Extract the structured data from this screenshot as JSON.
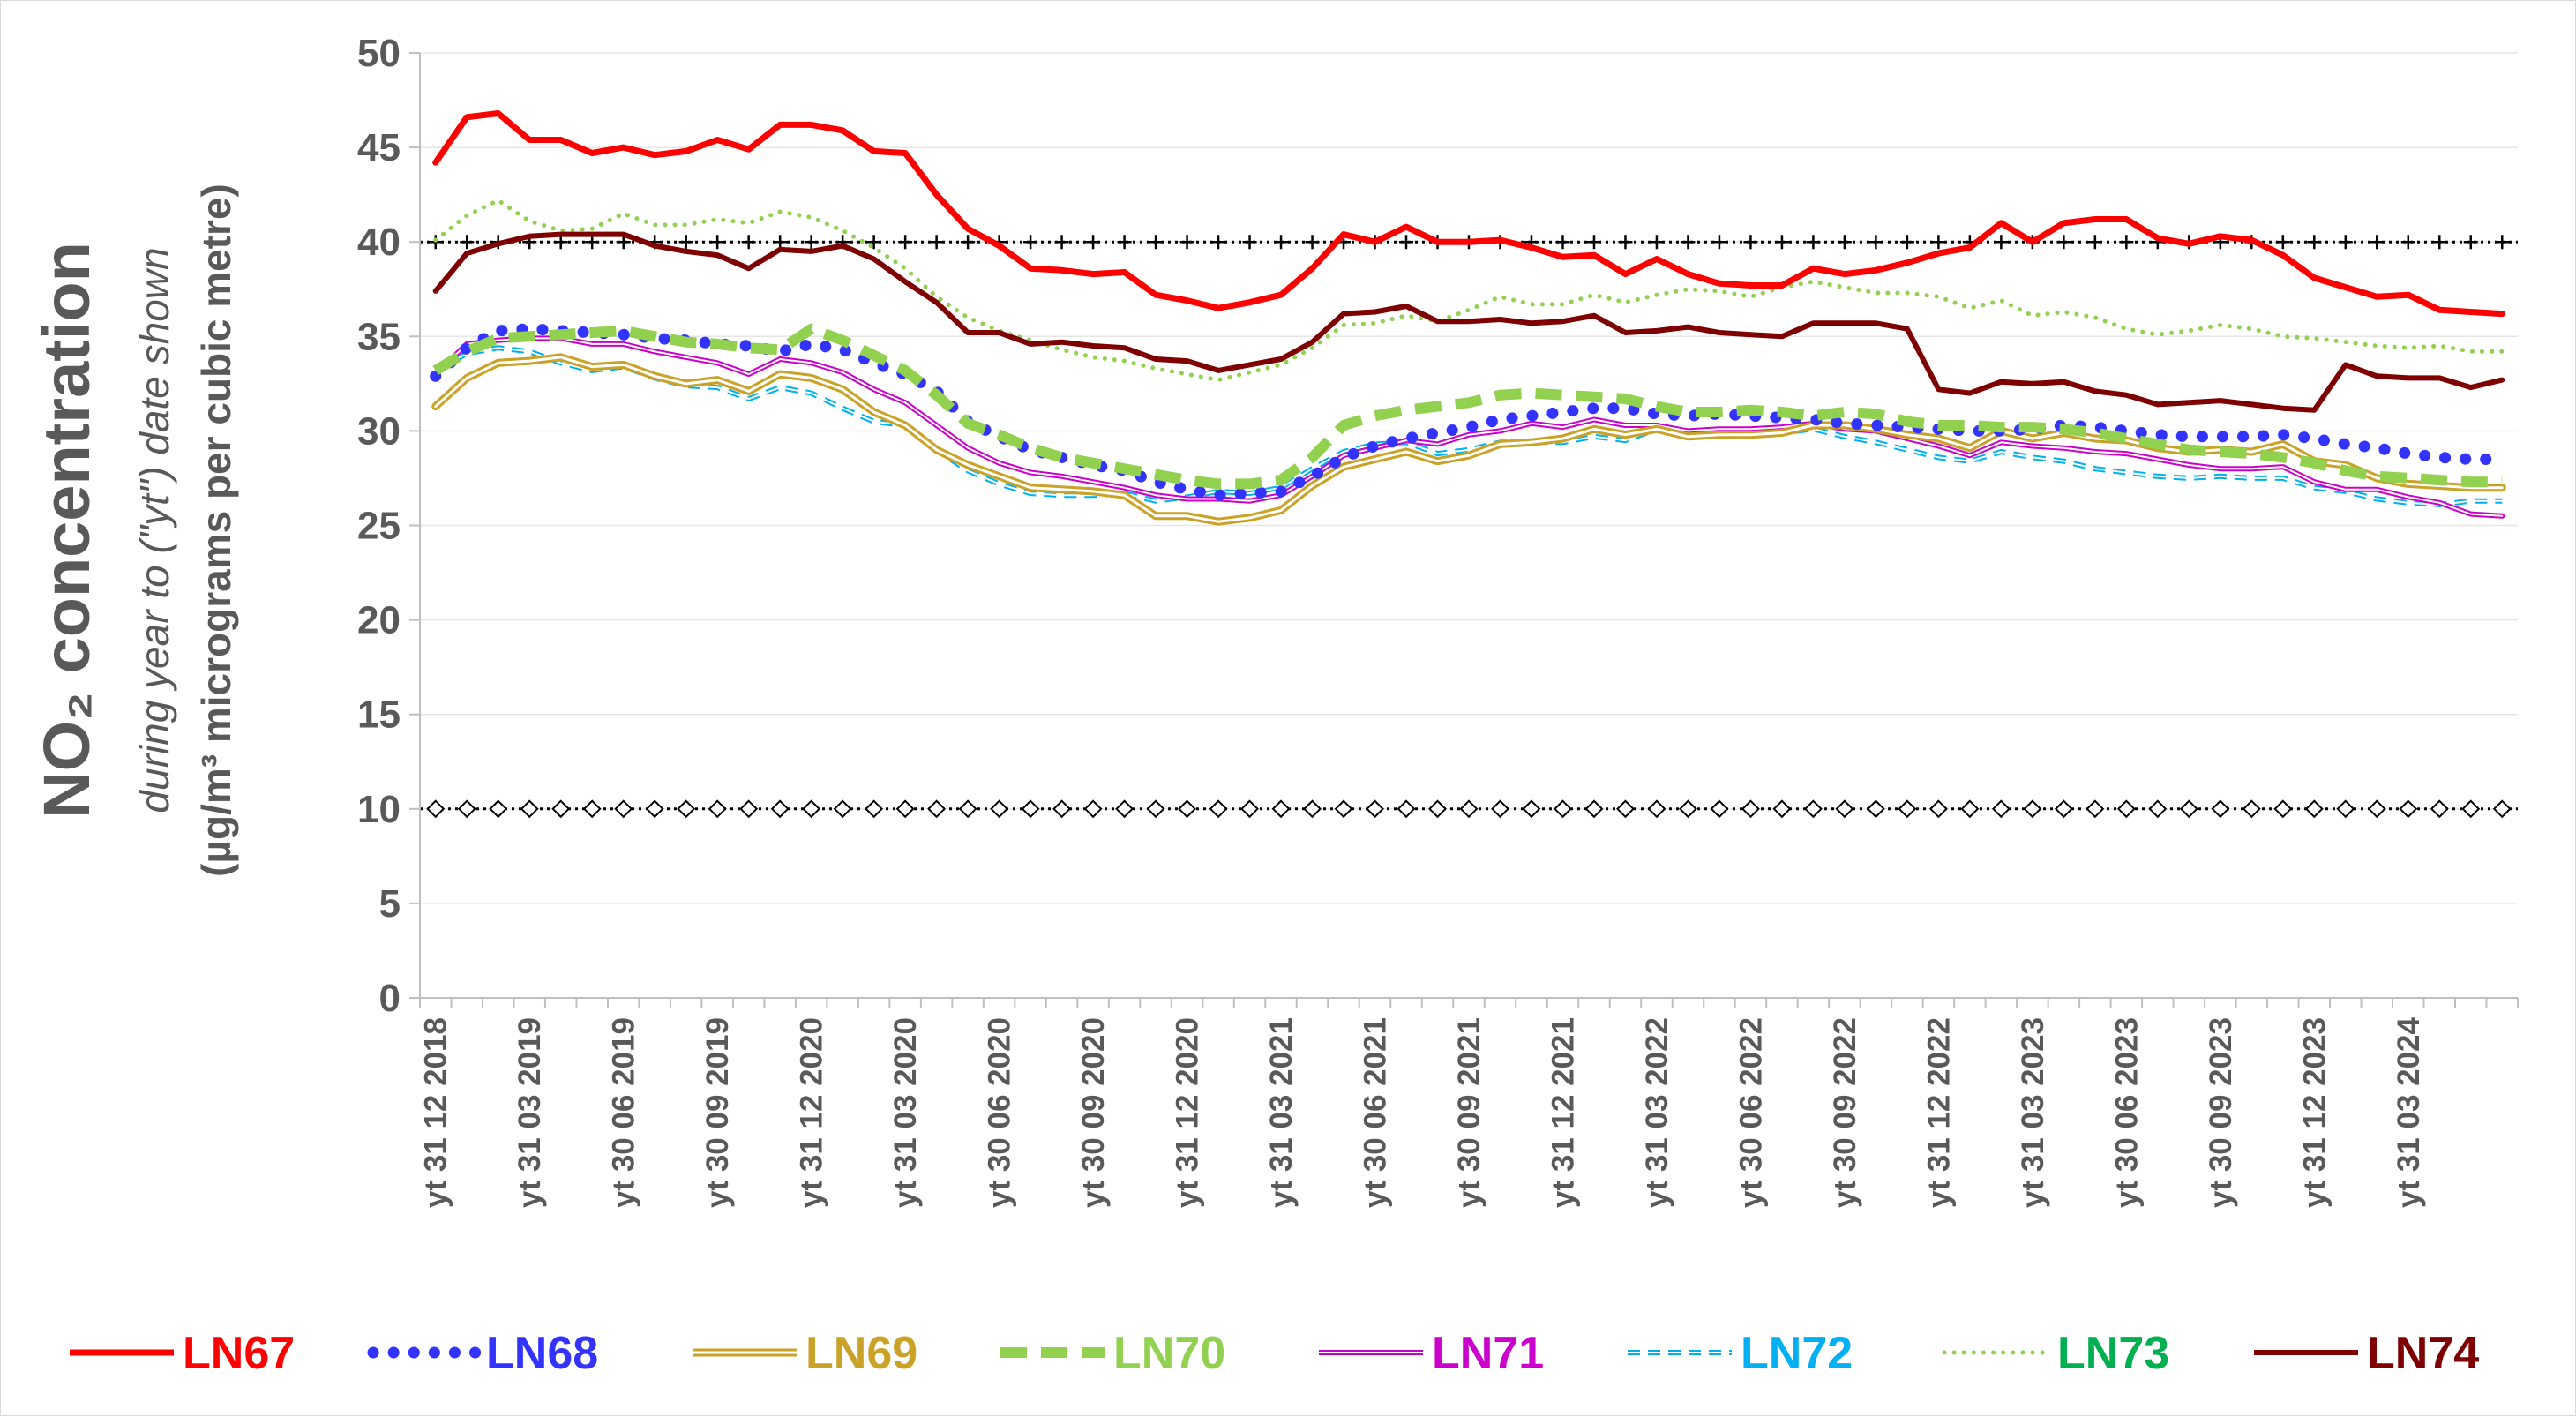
{
  "chart_data": {
    "type": "line",
    "ylabel_main": "NO₂ concentration",
    "ylabel_sub": "during year to (\"yt\") date shown",
    "ylabel_unit": "(µg/m³ micrograms per cubic metre)",
    "ylim": [
      0,
      50
    ],
    "yticks": [
      "0",
      "5",
      "10",
      "15",
      "20",
      "25",
      "30",
      "35",
      "40",
      "45",
      "50"
    ],
    "x_count": 67,
    "xtick_labels": [
      "yt 31 12 2018",
      "yt 31 03 2019",
      "yt 30 06 2019",
      "yt 30 09 2019",
      "yt 31 12 2020",
      "yt 31 03 2020",
      "yt 30 06 2020",
      "yt 30 09 2020",
      "yt 31 12 2020",
      "yt 31 03 2021",
      "yt 30 06 2021",
      "yt 30 09 2021",
      "yt 31 12 2021",
      "yt 31 03 2022",
      "yt 30 06 2022",
      "yt 30 09 2022",
      "yt 31 12 2022",
      "yt 31 03 2023",
      "yt 30 06 2023",
      "yt 30 09 2023",
      "yt 31 12 2023",
      "yt 31 03 2024"
    ],
    "reference_lines": [
      {
        "value": 40,
        "marker": "plus",
        "color": "#000000"
      },
      {
        "value": 10,
        "marker": "diamond",
        "color": "#000000"
      }
    ],
    "grid": true,
    "legend_position": "bottom",
    "series": [
      {
        "name": "LN67",
        "color": "#ff0000",
        "style": "solid",
        "values": [
          44.2,
          46.6,
          46.8,
          45.4,
          45.4,
          44.7,
          45,
          44.6,
          44.8,
          45.4,
          44.9,
          46.2,
          46.2,
          45.9,
          44.8,
          44.7,
          42.5,
          40.7,
          39.8,
          38.6,
          38.5,
          38.3,
          38.4,
          37.2,
          36.9,
          36.5,
          36.8,
          37.2,
          38.6,
          40.4,
          40,
          40.8,
          40,
          40,
          40.1,
          39.7,
          39.2,
          39.3,
          38.3,
          39.1,
          38.3,
          37.8,
          37.7,
          37.7,
          38.6,
          38.3,
          38.5,
          38.9,
          39.4,
          39.7,
          41,
          40,
          41,
          41.2,
          41.2,
          40.2,
          39.9,
          40.3,
          40.1,
          39.3,
          38.1,
          37.6,
          37.1,
          37.2,
          36.4,
          36.3,
          36.2
        ]
      },
      {
        "name": "LN68",
        "color": "#3333ff",
        "style": "dotted",
        "values": [
          32.9,
          34.4,
          35.3,
          35.4,
          35.3,
          35.2,
          35.1,
          34.9,
          34.8,
          34.6,
          34.5,
          34.2,
          34.6,
          34.3,
          33.6,
          33,
          32.1,
          30.5,
          29.7,
          29,
          28.6,
          28.2,
          27.9,
          27.3,
          26.9,
          26.6,
          26.7,
          26.8,
          27.6,
          28.6,
          29.2,
          29.6,
          29.9,
          30.2,
          30.6,
          30.8,
          31,
          31.2,
          31.2,
          30.9,
          30.8,
          30.9,
          30.8,
          30.7,
          30.6,
          30.4,
          30.3,
          30.2,
          30.1,
          30,
          30,
          30.1,
          30.3,
          30.2,
          30,
          29.8,
          29.7,
          29.7,
          29.7,
          29.8,
          29.6,
          29.3,
          29.1,
          28.8,
          28.6,
          28.5,
          28.5
        ]
      },
      {
        "name": "LN69",
        "color": "#c9a227",
        "style": "double",
        "values": [
          31.3,
          32.8,
          33.6,
          33.7,
          33.9,
          33.4,
          33.5,
          32.9,
          32.5,
          32.7,
          32.1,
          33,
          32.8,
          32.2,
          31,
          30.3,
          29,
          28.2,
          27.6,
          27,
          26.9,
          26.8,
          26.6,
          25.5,
          25.5,
          25.2,
          25.4,
          25.8,
          27.1,
          28.1,
          28.5,
          28.9,
          28.4,
          28.7,
          29.3,
          29.4,
          29.6,
          30.1,
          29.8,
          30.1,
          29.7,
          29.8,
          29.8,
          29.9,
          30.3,
          30.3,
          30.1,
          29.8,
          29.6,
          29.1,
          30,
          29.6,
          29.9,
          29.6,
          29.5,
          29.1,
          28.9,
          29,
          28.9,
          29.3,
          28.4,
          28.2,
          27.5,
          27.2,
          27.1,
          27,
          27
        ]
      },
      {
        "name": "LN70",
        "color": "#92d050",
        "style": "dashed",
        "values": [
          33.2,
          34.2,
          34.9,
          35,
          35.1,
          35.2,
          35.3,
          35,
          34.7,
          34.6,
          34.4,
          34.3,
          35.4,
          34.8,
          34,
          33.2,
          31.9,
          30.4,
          29.8,
          29.1,
          28.6,
          28.3,
          28,
          27.7,
          27.4,
          27.2,
          27.2,
          27.4,
          28.6,
          30.3,
          30.8,
          31.1,
          31.3,
          31.5,
          31.9,
          32,
          31.9,
          31.8,
          31.7,
          31.3,
          31,
          31,
          31.1,
          31,
          30.8,
          31,
          30.9,
          30.5,
          30.3,
          30.3,
          30.2,
          30.2,
          30.1,
          29.9,
          29.6,
          29.3,
          29,
          28.9,
          28.8,
          28.6,
          28.3,
          27.9,
          27.6,
          27.5,
          27.4,
          27.3,
          27.3
        ]
      },
      {
        "name": "LN71",
        "color": "#cc00cc",
        "style": "double",
        "values": [
          33,
          34.6,
          34.8,
          34.9,
          34.9,
          34.6,
          34.6,
          34.2,
          33.9,
          33.6,
          33,
          33.8,
          33.6,
          33.1,
          32.2,
          31.5,
          30.3,
          29.1,
          28.3,
          27.8,
          27.6,
          27.3,
          27,
          26.6,
          26.4,
          26.4,
          26.3,
          26.6,
          27.6,
          28.7,
          29.1,
          29.5,
          29.3,
          29.8,
          30,
          30.4,
          30.2,
          30.6,
          30.3,
          30.3,
          30,
          30.1,
          30.1,
          30.2,
          30.4,
          30.1,
          30,
          29.6,
          29.2,
          28.7,
          29.4,
          29.2,
          29.1,
          28.9,
          28.8,
          28.5,
          28.2,
          28,
          28,
          28.1,
          27.3,
          26.9,
          26.9,
          26.5,
          26.2,
          25.6,
          25.5
        ]
      },
      {
        "name": "LN72",
        "color": "#00b0f0",
        "style": "dashed-double",
        "values": [
          33.2,
          34.1,
          34.4,
          34.2,
          33.6,
          33.2,
          33.4,
          32.8,
          32.4,
          32.3,
          31.7,
          32.3,
          32,
          31.2,
          30.5,
          30.3,
          29,
          27.9,
          27.2,
          26.7,
          26.6,
          26.6,
          26.7,
          26.3,
          26.5,
          26.8,
          26.7,
          27,
          28,
          28.9,
          29.3,
          29.4,
          28.8,
          29,
          29.4,
          29.4,
          29.4,
          29.7,
          29.5,
          30.1,
          29.7,
          29.7,
          29.8,
          29.9,
          30.1,
          29.7,
          29.4,
          29,
          28.6,
          28.4,
          28.9,
          28.6,
          28.4,
          28,
          27.8,
          27.6,
          27.5,
          27.6,
          27.5,
          27.5,
          27,
          26.8,
          26.4,
          26.2,
          26.1,
          26.3,
          26.3
        ]
      },
      {
        "name": "LN73",
        "color": "#00b050",
        "line_color": "#92d050",
        "style": "dotted",
        "values": [
          40.1,
          41.4,
          42.2,
          41.1,
          40.6,
          40.7,
          41.5,
          40.9,
          40.9,
          41.2,
          41,
          41.6,
          41.3,
          40.6,
          39.7,
          38.6,
          37.1,
          36,
          35.3,
          34.8,
          34.3,
          33.9,
          33.7,
          33.3,
          33,
          32.7,
          33.1,
          33.5,
          34.4,
          35.6,
          35.7,
          36.1,
          35.8,
          36.4,
          37.1,
          36.7,
          36.7,
          37.2,
          36.8,
          37.2,
          37.5,
          37.4,
          37.1,
          37.6,
          37.9,
          37.6,
          37.3,
          37.3,
          37.1,
          36.5,
          36.9,
          36.1,
          36.3,
          36,
          35.4,
          35.1,
          35.3,
          35.6,
          35.4,
          35,
          34.9,
          34.7,
          34.5,
          34.4,
          34.5,
          34.2,
          34.2
        ]
      },
      {
        "name": "LN74",
        "color": "#7f0000",
        "style": "solid",
        "values": [
          37.4,
          39.4,
          39.9,
          40.3,
          40.4,
          40.4,
          40.4,
          39.8,
          39.5,
          39.3,
          38.6,
          39.6,
          39.5,
          39.8,
          39.1,
          37.9,
          36.8,
          35.2,
          35.2,
          34.6,
          34.7,
          34.5,
          34.4,
          33.8,
          33.7,
          33.2,
          33.5,
          33.8,
          34.7,
          36.2,
          36.3,
          36.6,
          35.8,
          35.8,
          35.9,
          35.7,
          35.8,
          36.1,
          35.2,
          35.3,
          35.5,
          35.2,
          35.1,
          35,
          35.7,
          35.7,
          35.7,
          35.4,
          32.2,
          32,
          32.6,
          32.5,
          32.6,
          32.1,
          31.9,
          31.4,
          31.5,
          31.6,
          31.4,
          31.2,
          31.1,
          33.5,
          32.9,
          32.8,
          32.8,
          32.3,
          32.7
        ]
      }
    ]
  }
}
